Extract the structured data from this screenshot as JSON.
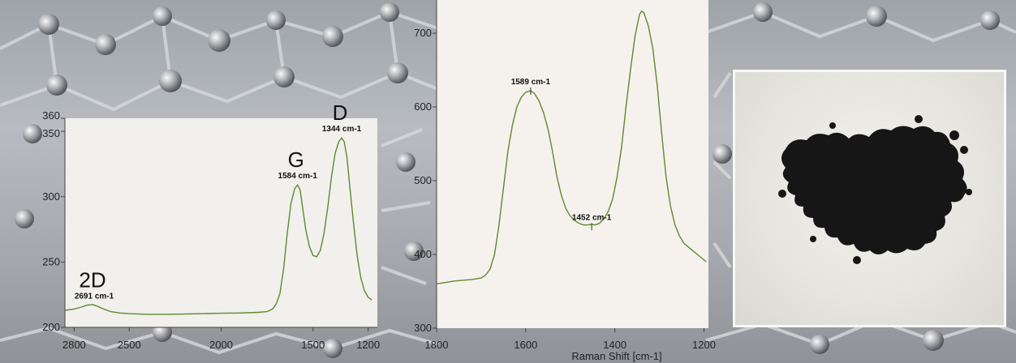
{
  "chart_data": [
    {
      "type": "line",
      "title": "",
      "xlabel": "",
      "ylabel": "",
      "x_reversed": true,
      "xlim": [
        2850,
        1150
      ],
      "ylim": [
        200,
        360
      ],
      "xticks": [
        "2800",
        "2500",
        "2000",
        "1500",
        "1200"
      ],
      "yticks": [
        "360",
        "350",
        "300",
        "250",
        "200"
      ],
      "peak_labels": [
        {
          "text": "G",
          "sub": "1584 cm-1",
          "x": 1584,
          "y": 309
        },
        {
          "text": "D",
          "sub": "1344 cm-1",
          "x": 1344,
          "y": 345
        },
        {
          "text": "2D",
          "sub": "2691 cm-1",
          "x": 2691,
          "y": 217
        }
      ],
      "series": [
        {
          "color": "#5d8a2e",
          "points": [
            [
              2850,
              213
            ],
            [
              2800,
              214
            ],
            [
              2760,
              215.5
            ],
            [
              2730,
              217
            ],
            [
              2700,
              217.5
            ],
            [
              2670,
              216
            ],
            [
              2640,
              214
            ],
            [
              2600,
              212
            ],
            [
              2550,
              211
            ],
            [
              2500,
              210.5
            ],
            [
              2400,
              210
            ],
            [
              2300,
              210
            ],
            [
              2200,
              210.2
            ],
            [
              2100,
              210.5
            ],
            [
              2000,
              210.8
            ],
            [
              1900,
              211
            ],
            [
              1800,
              211.5
            ],
            [
              1750,
              212
            ],
            [
              1720,
              214
            ],
            [
              1700,
              218
            ],
            [
              1680,
              226
            ],
            [
              1660,
              245
            ],
            [
              1640,
              272
            ],
            [
              1620,
              295
            ],
            [
              1600,
              306
            ],
            [
              1584,
              309
            ],
            [
              1570,
              305
            ],
            [
              1555,
              290
            ],
            [
              1540,
              275
            ],
            [
              1520,
              262
            ],
            [
              1500,
              255
            ],
            [
              1480,
              254
            ],
            [
              1460,
              259
            ],
            [
              1440,
              272
            ],
            [
              1420,
              292
            ],
            [
              1400,
              315
            ],
            [
              1380,
              333
            ],
            [
              1360,
              342
            ],
            [
              1344,
              345
            ],
            [
              1330,
              342
            ],
            [
              1315,
              330
            ],
            [
              1300,
              308
            ],
            [
              1280,
              280
            ],
            [
              1260,
              255
            ],
            [
              1240,
              238
            ],
            [
              1220,
              228
            ],
            [
              1200,
              223
            ],
            [
              1180,
              221
            ]
          ]
        }
      ]
    },
    {
      "type": "line",
      "title": "",
      "xlabel": "Raman Shift [cm-1]",
      "ylabel": "",
      "x_reversed": true,
      "xlim": [
        1800,
        1190
      ],
      "ylim": [
        300,
        745
      ],
      "xticks": [
        "1800",
        "1600",
        "1400",
        "1200"
      ],
      "yticks": [
        "700",
        "600",
        "500",
        "400",
        "300"
      ],
      "peak_labels": [
        {
          "sub": "1589 cm-1",
          "x": 1589,
          "y": 622
        },
        {
          "sub": "1452 cm-1",
          "x": 1452,
          "y": 438
        }
      ],
      "series": [
        {
          "color": "#5d8a2e",
          "points": [
            [
              1800,
              360
            ],
            [
              1780,
              362
            ],
            [
              1760,
              364
            ],
            [
              1740,
              365
            ],
            [
              1720,
              366
            ],
            [
              1700,
              368
            ],
            [
              1690,
              372
            ],
            [
              1680,
              380
            ],
            [
              1670,
              400
            ],
            [
              1660,
              440
            ],
            [
              1650,
              490
            ],
            [
              1640,
              540
            ],
            [
              1630,
              575
            ],
            [
              1620,
              600
            ],
            [
              1610,
              613
            ],
            [
              1600,
              620
            ],
            [
              1589,
              622
            ],
            [
              1580,
              618
            ],
            [
              1570,
              608
            ],
            [
              1560,
              592
            ],
            [
              1550,
              570
            ],
            [
              1540,
              540
            ],
            [
              1530,
              505
            ],
            [
              1520,
              480
            ],
            [
              1510,
              462
            ],
            [
              1500,
              452
            ],
            [
              1490,
              446
            ],
            [
              1480,
              442
            ],
            [
              1470,
              440
            ],
            [
              1460,
              440
            ],
            [
              1452,
              441
            ],
            [
              1445,
              440
            ],
            [
              1435,
              442
            ],
            [
              1425,
              448
            ],
            [
              1415,
              458
            ],
            [
              1405,
              475
            ],
            [
              1395,
              505
            ],
            [
              1385,
              545
            ],
            [
              1375,
              600
            ],
            [
              1365,
              650
            ],
            [
              1355,
              695
            ],
            [
              1345,
              725
            ],
            [
              1340,
              730
            ],
            [
              1335,
              728
            ],
            [
              1325,
              710
            ],
            [
              1315,
              680
            ],
            [
              1305,
              630
            ],
            [
              1295,
              565
            ],
            [
              1285,
              505
            ],
            [
              1275,
              465
            ],
            [
              1265,
              440
            ],
            [
              1255,
              425
            ],
            [
              1245,
              415
            ],
            [
              1235,
              410
            ],
            [
              1225,
              405
            ],
            [
              1215,
              400
            ],
            [
              1205,
              395
            ],
            [
              1195,
              390
            ]
          ]
        }
      ]
    }
  ]
}
